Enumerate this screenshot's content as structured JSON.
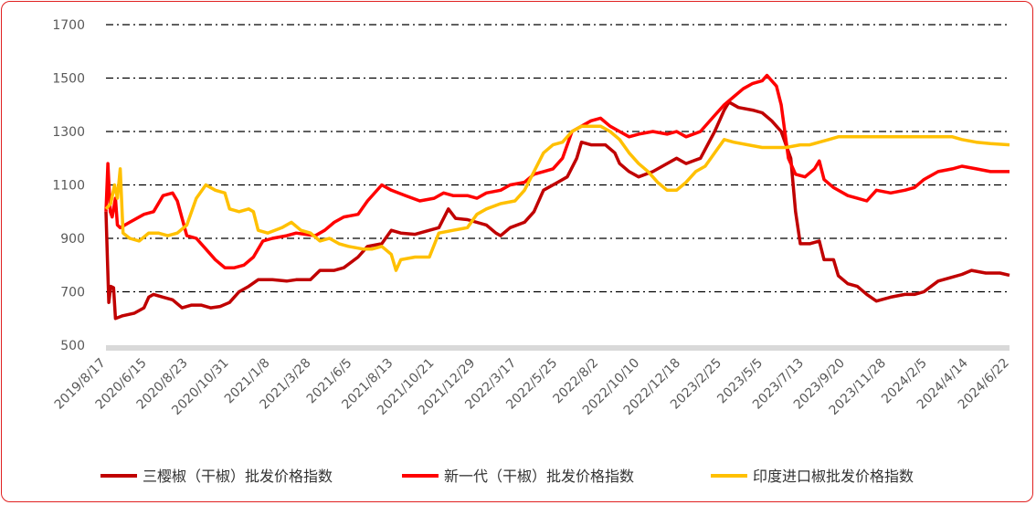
{
  "chart_data": {
    "type": "line",
    "title": "",
    "xlabel": "",
    "ylabel": "",
    "ylim": [
      500,
      1700
    ],
    "yticks": [
      500,
      700,
      900,
      1100,
      1300,
      1500,
      1700
    ],
    "grid": "horizontal dash-dot",
    "legend_position": "bottom",
    "x_tick_labels": [
      "2019/8/17",
      "2020/6/15",
      "2020/8/23",
      "2020/10/31",
      "2021/1/8",
      "2021/3/28",
      "2021/6/5",
      "2021/8/13",
      "2021/10/21",
      "2021/12/29",
      "2022/3/17",
      "2022/5/25",
      "2022/8/2",
      "2022/10/10",
      "2022/12/18",
      "2023/2/25",
      "2023/5/5",
      "2023/7/13",
      "2023/9/20",
      "2023/11/28",
      "2024/2/5",
      "2024/4/14",
      "2024/6/22"
    ],
    "series": [
      {
        "name": "三樱椒（干椒）批发价格指数",
        "color": "#c00000",
        "points": [
          [
            0,
            1000
          ],
          [
            0.03,
            820
          ],
          [
            0.06,
            660
          ],
          [
            0.1,
            720
          ],
          [
            0.16,
            715
          ],
          [
            0.2,
            600
          ],
          [
            0.35,
            610
          ],
          [
            0.6,
            620
          ],
          [
            0.8,
            640
          ],
          [
            0.9,
            680
          ],
          [
            1,
            690
          ],
          [
            1.2,
            680
          ],
          [
            1.4,
            670
          ],
          [
            1.6,
            640
          ],
          [
            1.8,
            650
          ],
          [
            2,
            650
          ],
          [
            2.2,
            640
          ],
          [
            2.4,
            645
          ],
          [
            2.6,
            660
          ],
          [
            2.8,
            700
          ],
          [
            3,
            720
          ],
          [
            3.2,
            745
          ],
          [
            3.5,
            745
          ],
          [
            3.8,
            740
          ],
          [
            4,
            745
          ],
          [
            4.3,
            745
          ],
          [
            4.5,
            780
          ],
          [
            4.8,
            780
          ],
          [
            5,
            790
          ],
          [
            5.3,
            830
          ],
          [
            5.5,
            870
          ],
          [
            5.8,
            880
          ],
          [
            6,
            930
          ],
          [
            6.2,
            920
          ],
          [
            6.5,
            915
          ],
          [
            6.8,
            930
          ],
          [
            7,
            940
          ],
          [
            7.2,
            1010
          ],
          [
            7.35,
            975
          ],
          [
            7.6,
            970
          ],
          [
            8,
            950
          ],
          [
            8.2,
            920
          ],
          [
            8.3,
            910
          ],
          [
            8.5,
            940
          ],
          [
            8.8,
            960
          ],
          [
            9,
            1000
          ],
          [
            9.2,
            1080
          ],
          [
            9.5,
            1110
          ],
          [
            9.7,
            1130
          ],
          [
            9.9,
            1200
          ],
          [
            10,
            1260
          ],
          [
            10.2,
            1250
          ],
          [
            10.5,
            1250
          ],
          [
            10.7,
            1220
          ],
          [
            10.8,
            1180
          ],
          [
            11,
            1150
          ],
          [
            11.2,
            1130
          ],
          [
            11.5,
            1150
          ],
          [
            11.8,
            1180
          ],
          [
            12,
            1200
          ],
          [
            12.2,
            1180
          ],
          [
            12.5,
            1200
          ],
          [
            12.8,
            1300
          ],
          [
            13,
            1380
          ],
          [
            13.1,
            1410
          ],
          [
            13.3,
            1390
          ],
          [
            13.6,
            1380
          ],
          [
            13.8,
            1370
          ],
          [
            14,
            1340
          ],
          [
            14.2,
            1300
          ],
          [
            14.4,
            1200
          ],
          [
            14.5,
            1000
          ],
          [
            14.6,
            880
          ],
          [
            14.8,
            880
          ],
          [
            15,
            890
          ],
          [
            15.1,
            820
          ],
          [
            15.3,
            820
          ],
          [
            15.4,
            760
          ],
          [
            15.6,
            730
          ],
          [
            15.8,
            720
          ],
          [
            16,
            690
          ],
          [
            16.2,
            665
          ],
          [
            16.5,
            680
          ],
          [
            16.8,
            690
          ],
          [
            17,
            690
          ],
          [
            17.2,
            700
          ],
          [
            17.5,
            740
          ],
          [
            17.8,
            755
          ],
          [
            18,
            765
          ],
          [
            18.2,
            780
          ],
          [
            18.5,
            770
          ],
          [
            18.8,
            770
          ],
          [
            19,
            762
          ]
        ]
      },
      {
        "name": "新一代（干椒）批发价格指数",
        "color": "#ff0000",
        "points": [
          [
            0,
            1000
          ],
          [
            0.04,
            1180
          ],
          [
            0.09,
            1000
          ],
          [
            0.13,
            980
          ],
          [
            0.2,
            1050
          ],
          [
            0.24,
            950
          ],
          [
            0.3,
            940
          ],
          [
            0.5,
            960
          ],
          [
            0.8,
            990
          ],
          [
            1,
            1000
          ],
          [
            1.2,
            1060
          ],
          [
            1.4,
            1070
          ],
          [
            1.5,
            1040
          ],
          [
            1.7,
            910
          ],
          [
            1.9,
            900
          ],
          [
            2.1,
            860
          ],
          [
            2.3,
            820
          ],
          [
            2.5,
            790
          ],
          [
            2.7,
            790
          ],
          [
            2.9,
            800
          ],
          [
            3.1,
            830
          ],
          [
            3.3,
            890
          ],
          [
            3.5,
            900
          ],
          [
            3.8,
            910
          ],
          [
            4,
            920
          ],
          [
            4.2,
            915
          ],
          [
            4.4,
            910
          ],
          [
            4.6,
            930
          ],
          [
            4.8,
            960
          ],
          [
            5,
            980
          ],
          [
            5.3,
            990
          ],
          [
            5.5,
            1040
          ],
          [
            5.8,
            1100
          ],
          [
            6,
            1080
          ],
          [
            6.3,
            1060
          ],
          [
            6.6,
            1040
          ],
          [
            6.9,
            1050
          ],
          [
            7.1,
            1070
          ],
          [
            7.3,
            1060
          ],
          [
            7.6,
            1060
          ],
          [
            7.8,
            1050
          ],
          [
            8,
            1070
          ],
          [
            8.3,
            1080
          ],
          [
            8.5,
            1100
          ],
          [
            8.8,
            1110
          ],
          [
            9,
            1140
          ],
          [
            9.2,
            1150
          ],
          [
            9.4,
            1160
          ],
          [
            9.6,
            1200
          ],
          [
            9.8,
            1300
          ],
          [
            10,
            1320
          ],
          [
            10.2,
            1340
          ],
          [
            10.4,
            1350
          ],
          [
            10.6,
            1320
          ],
          [
            10.8,
            1300
          ],
          [
            11,
            1280
          ],
          [
            11.2,
            1290
          ],
          [
            11.5,
            1300
          ],
          [
            11.8,
            1290
          ],
          [
            12,
            1300
          ],
          [
            12.2,
            1280
          ],
          [
            12.5,
            1300
          ],
          [
            12.8,
            1360
          ],
          [
            13,
            1400
          ],
          [
            13.2,
            1430
          ],
          [
            13.4,
            1460
          ],
          [
            13.6,
            1480
          ],
          [
            13.8,
            1490
          ],
          [
            13.9,
            1510
          ],
          [
            14.1,
            1470
          ],
          [
            14.2,
            1400
          ],
          [
            14.35,
            1200
          ],
          [
            14.5,
            1140
          ],
          [
            14.7,
            1130
          ],
          [
            14.9,
            1160
          ],
          [
            15,
            1190
          ],
          [
            15.1,
            1120
          ],
          [
            15.3,
            1090
          ],
          [
            15.6,
            1060
          ],
          [
            15.8,
            1050
          ],
          [
            16,
            1040
          ],
          [
            16.2,
            1080
          ],
          [
            16.5,
            1070
          ],
          [
            16.8,
            1080
          ],
          [
            17,
            1090
          ],
          [
            17.2,
            1120
          ],
          [
            17.5,
            1150
          ],
          [
            17.8,
            1160
          ],
          [
            18,
            1170
          ],
          [
            18.3,
            1160
          ],
          [
            18.6,
            1150
          ],
          [
            19,
            1150
          ]
        ]
      },
      {
        "name": "印度进口椒批发价格指数",
        "color": "#ffc000",
        "points": [
          [
            0,
            1010
          ],
          [
            0.1,
            1030
          ],
          [
            0.18,
            1100
          ],
          [
            0.24,
            1050
          ],
          [
            0.3,
            1160
          ],
          [
            0.36,
            920
          ],
          [
            0.5,
            900
          ],
          [
            0.7,
            890
          ],
          [
            0.9,
            920
          ],
          [
            1.1,
            920
          ],
          [
            1.3,
            910
          ],
          [
            1.5,
            920
          ],
          [
            1.7,
            950
          ],
          [
            1.9,
            1050
          ],
          [
            2.1,
            1100
          ],
          [
            2.3,
            1080
          ],
          [
            2.5,
            1070
          ],
          [
            2.6,
            1010
          ],
          [
            2.8,
            1000
          ],
          [
            3,
            1010
          ],
          [
            3.1,
            1000
          ],
          [
            3.2,
            930
          ],
          [
            3.4,
            920
          ],
          [
            3.7,
            940
          ],
          [
            3.9,
            960
          ],
          [
            4.1,
            930
          ],
          [
            4.3,
            920
          ],
          [
            4.5,
            890
          ],
          [
            4.7,
            900
          ],
          [
            4.9,
            880
          ],
          [
            5.1,
            870
          ],
          [
            5.4,
            860
          ],
          [
            5.6,
            860
          ],
          [
            5.8,
            870
          ],
          [
            6,
            840
          ],
          [
            6.1,
            780
          ],
          [
            6.2,
            820
          ],
          [
            6.5,
            830
          ],
          [
            6.8,
            830
          ],
          [
            7,
            920
          ],
          [
            7.3,
            930
          ],
          [
            7.6,
            940
          ],
          [
            7.8,
            990
          ],
          [
            8,
            1010
          ],
          [
            8.3,
            1030
          ],
          [
            8.6,
            1040
          ],
          [
            8.8,
            1080
          ],
          [
            9,
            1150
          ],
          [
            9.2,
            1220
          ],
          [
            9.4,
            1250
          ],
          [
            9.6,
            1260
          ],
          [
            9.8,
            1300
          ],
          [
            10,
            1320
          ],
          [
            10.2,
            1320
          ],
          [
            10.4,
            1320
          ],
          [
            10.6,
            1300
          ],
          [
            10.8,
            1270
          ],
          [
            11,
            1220
          ],
          [
            11.2,
            1180
          ],
          [
            11.4,
            1150
          ],
          [
            11.6,
            1110
          ],
          [
            11.8,
            1080
          ],
          [
            12,
            1080
          ],
          [
            12.2,
            1110
          ],
          [
            12.4,
            1150
          ],
          [
            12.6,
            1170
          ],
          [
            12.8,
            1220
          ],
          [
            13,
            1270
          ],
          [
            13.2,
            1260
          ],
          [
            13.5,
            1250
          ],
          [
            13.8,
            1240
          ],
          [
            14,
            1240
          ],
          [
            14.3,
            1240
          ],
          [
            14.6,
            1250
          ],
          [
            14.8,
            1250
          ],
          [
            15,
            1260
          ],
          [
            15.2,
            1270
          ],
          [
            15.4,
            1280
          ],
          [
            15.6,
            1280
          ],
          [
            15.9,
            1280
          ],
          [
            16.2,
            1280
          ],
          [
            16.6,
            1280
          ],
          [
            17,
            1280
          ],
          [
            17.4,
            1280
          ],
          [
            17.8,
            1280
          ],
          [
            18,
            1270
          ],
          [
            18.3,
            1260
          ],
          [
            18.6,
            1255
          ],
          [
            19,
            1250
          ]
        ]
      }
    ]
  }
}
